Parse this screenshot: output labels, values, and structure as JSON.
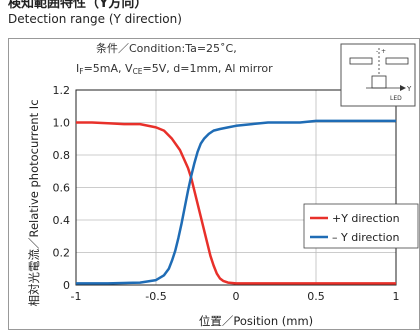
{
  "header": {
    "title_jp": "検知範囲特性（Y方向）",
    "title_en": "Detection range (Y direction)"
  },
  "chart_data": {
    "type": "line",
    "conditions_line1": "条件／Condition:Ta=25˚C,",
    "conditions_line2_parts": [
      "I",
      "F",
      "=5mA, V",
      "CE",
      "=5V, d=1mm, Al mirror"
    ],
    "xlabel": "位置／Position (mm)",
    "ylabel": "相対光電流／Relative photocurrent Ic",
    "xlim": [
      -1,
      1
    ],
    "ylim": [
      0,
      1.2
    ],
    "x_ticks": [
      "-1",
      "-0.5",
      "0",
      "0.5",
      "1"
    ],
    "x_tick_values": [
      -1,
      -0.5,
      0,
      0.5,
      1
    ],
    "y_ticks": [
      "0",
      "0.2",
      "0.4",
      "0.6",
      "0.8",
      "1.0",
      "1.2"
    ],
    "y_tick_values": [
      0,
      0.2,
      0.4,
      0.6,
      0.8,
      1.0,
      1.2
    ],
    "grid": true,
    "legend_position": "right-middle",
    "series": [
      {
        "name": "+Y direction",
        "color": "#e8302a",
        "x": [
          -1.0,
          -0.9,
          -0.8,
          -0.7,
          -0.6,
          -0.5,
          -0.45,
          -0.4,
          -0.35,
          -0.3,
          -0.28,
          -0.26,
          -0.24,
          -0.22,
          -0.2,
          -0.18,
          -0.16,
          -0.14,
          -0.12,
          -0.1,
          -0.08,
          -0.05,
          0.0,
          0.1,
          0.3,
          0.5,
          0.7,
          1.0
        ],
        "y": [
          1.0,
          1.0,
          0.995,
          0.99,
          0.99,
          0.97,
          0.95,
          0.9,
          0.83,
          0.72,
          0.66,
          0.58,
          0.5,
          0.42,
          0.34,
          0.26,
          0.18,
          0.12,
          0.07,
          0.04,
          0.025,
          0.015,
          0.01,
          0.01,
          0.01,
          0.01,
          0.01,
          0.01
        ]
      },
      {
        "name": "– Y direction",
        "color": "#1f6cb5",
        "x": [
          -1.0,
          -0.8,
          -0.6,
          -0.5,
          -0.45,
          -0.42,
          -0.4,
          -0.38,
          -0.36,
          -0.34,
          -0.32,
          -0.3,
          -0.28,
          -0.26,
          -0.24,
          -0.22,
          -0.2,
          -0.17,
          -0.14,
          -0.1,
          -0.05,
          0.0,
          0.1,
          0.2,
          0.3,
          0.4,
          0.5,
          0.7,
          1.0
        ],
        "y": [
          0.01,
          0.01,
          0.015,
          0.03,
          0.06,
          0.1,
          0.15,
          0.21,
          0.29,
          0.38,
          0.48,
          0.58,
          0.67,
          0.75,
          0.82,
          0.87,
          0.9,
          0.93,
          0.95,
          0.96,
          0.97,
          0.98,
          0.99,
          1.0,
          1.0,
          1.0,
          1.01,
          1.01,
          1.01
        ]
      }
    ],
    "inset_label": "Y",
    "inset_sublabel": "LED"
  }
}
